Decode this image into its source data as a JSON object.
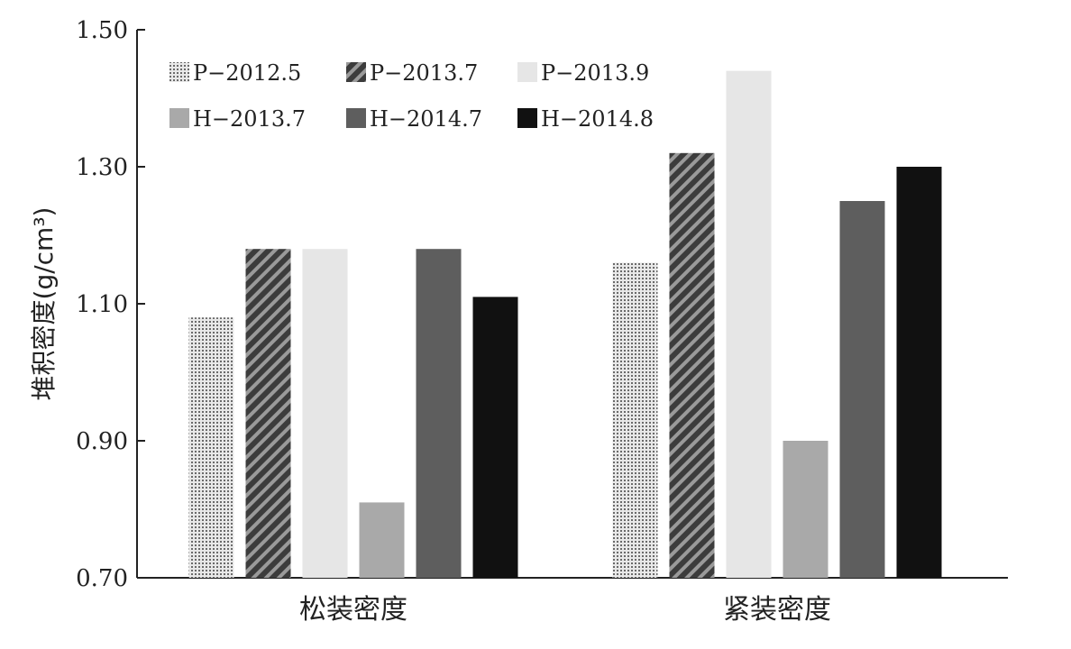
{
  "chart_data": {
    "type": "bar",
    "title": "",
    "xlabel": "",
    "ylabel": "堆积密度(g/cm³)",
    "ylim": [
      0.7,
      1.5
    ],
    "yticks": [
      "0.70",
      "0.90",
      "1.10",
      "1.30",
      "1.50"
    ],
    "ytick_values": [
      0.7,
      0.9,
      1.1,
      1.3,
      1.5
    ],
    "grid": false,
    "legend_position": "top-left",
    "categories": [
      "松装密度",
      "紧装密度"
    ],
    "series": [
      {
        "name": "P−2012.5",
        "values": [
          1.08,
          1.16
        ],
        "color": "#bdbdbd",
        "pattern": "dots"
      },
      {
        "name": "P−2013.7",
        "values": [
          1.18,
          1.32
        ],
        "color": "#555555",
        "pattern": "hatch"
      },
      {
        "name": "P−2013.9",
        "values": [
          1.18,
          1.44
        ],
        "color": "#e6e6e6",
        "pattern": "solid"
      },
      {
        "name": "H−2013.7",
        "values": [
          0.81,
          0.9
        ],
        "color": "#a9a9a9",
        "pattern": "solid"
      },
      {
        "name": "H−2014.7",
        "values": [
          1.18,
          1.25
        ],
        "color": "#5e5e5e",
        "pattern": "solid"
      },
      {
        "name": "H−2014.8",
        "values": [
          1.11,
          1.3
        ],
        "color": "#111111",
        "pattern": "solid"
      }
    ]
  }
}
